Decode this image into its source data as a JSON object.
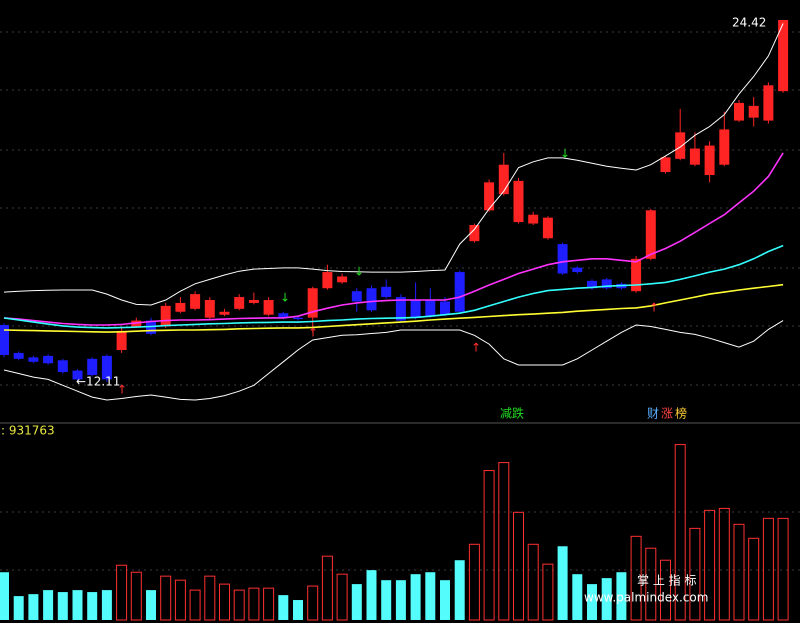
{
  "chart_data": {
    "type": "candlestick",
    "ylim": [
      10.82,
      25.1
    ],
    "up_color": "#ff2424",
    "down_color": "#1e1eff",
    "candles": {
      "open": [
        14.05,
        13.1,
        12.95,
        13.0,
        12.85,
        12.5,
        12.9,
        13.0,
        13.2,
        14.0,
        14.2,
        14.0,
        14.5,
        14.6,
        14.3,
        14.4,
        14.6,
        14.8,
        14.4,
        14.45,
        14.3,
        14.3,
        15.3,
        15.5,
        15.2,
        15.3,
        15.35,
        15.0,
        14.9,
        14.9,
        14.85,
        15.85,
        16.9,
        17.95,
        18.5,
        17.55,
        17.5,
        17.0,
        16.8,
        16.0,
        15.55,
        15.6,
        15.45,
        15.2,
        16.3,
        19.25,
        19.7,
        19.5,
        19.15,
        19.5,
        21.0,
        21.1,
        21.0,
        22.0
      ],
      "close": [
        13.03,
        12.9,
        12.8,
        12.75,
        12.45,
        12.2,
        12.35,
        12.2,
        13.85,
        14.2,
        13.75,
        14.7,
        14.8,
        15.1,
        14.9,
        14.5,
        15.0,
        14.9,
        14.9,
        14.3,
        14.25,
        15.3,
        15.85,
        15.7,
        14.85,
        14.55,
        15.0,
        14.2,
        14.3,
        14.35,
        14.4,
        14.5,
        17.45,
        18.9,
        19.5,
        18.95,
        17.8,
        17.7,
        15.8,
        15.85,
        15.3,
        15.3,
        15.3,
        16.3,
        17.95,
        19.75,
        20.6,
        20.05,
        20.15,
        20.7,
        21.6,
        21.5,
        22.2,
        24.42
      ],
      "high": [
        14.1,
        13.15,
        13.0,
        13.05,
        12.9,
        12.55,
        12.95,
        13.05,
        14.0,
        14.3,
        14.3,
        14.8,
        15.0,
        15.2,
        15.0,
        14.6,
        15.1,
        15.15,
        15.0,
        14.5,
        14.35,
        15.35,
        16.1,
        15.8,
        15.3,
        15.4,
        15.6,
        15.1,
        15.5,
        15.3,
        15.0,
        15.9,
        17.5,
        19.0,
        19.9,
        19.05,
        17.9,
        17.75,
        16.85,
        16.05,
        15.6,
        15.65,
        15.5,
        16.4,
        18.0,
        19.8,
        21.4,
        20.6,
        20.3,
        21.3,
        21.7,
        21.8,
        22.3,
        24.42
      ],
      "low": [
        12.95,
        12.85,
        12.75,
        12.7,
        12.4,
        12.11,
        12.3,
        12.11,
        13.1,
        13.95,
        13.7,
        13.95,
        14.45,
        14.55,
        14.25,
        14.35,
        14.55,
        14.75,
        14.35,
        14.25,
        14.2,
        13.8,
        15.25,
        15.45,
        14.5,
        14.5,
        14.95,
        14.15,
        14.25,
        14.3,
        14.35,
        14.45,
        16.85,
        17.9,
        18.45,
        17.5,
        17.45,
        16.95,
        15.75,
        15.8,
        15.25,
        15.25,
        15.25,
        15.15,
        16.25,
        19.2,
        19.65,
        19.45,
        18.9,
        19.45,
        20.95,
        20.8,
        20.9,
        21.95
      ]
    },
    "lines": [
      {
        "color": "#ffffff",
        "values": [
          15.17,
          15.2,
          15.22,
          15.23,
          15.24,
          15.24,
          15.24,
          15.1,
          14.9,
          14.75,
          14.73,
          14.9,
          15.2,
          15.45,
          15.6,
          15.75,
          15.88,
          15.95,
          15.97,
          15.99,
          15.99,
          15.95,
          15.9,
          15.87,
          15.86,
          15.85,
          15.85,
          15.85,
          15.87,
          15.9,
          15.92,
          16.8,
          17.3,
          18.0,
          18.6,
          19.4,
          19.6,
          19.73,
          19.73,
          19.65,
          19.55,
          19.45,
          19.38,
          19.32,
          19.5,
          19.8,
          20.1,
          20.5,
          20.8,
          21.2,
          21.9,
          22.5,
          23.2,
          24.3
        ]
      },
      {
        "color": "#ffffff",
        "values": [
          12.52,
          12.4,
          12.28,
          12.2,
          12.0,
          11.8,
          11.6,
          11.5,
          11.55,
          11.62,
          11.67,
          11.6,
          11.52,
          11.5,
          11.55,
          11.65,
          11.8,
          12.0,
          12.4,
          12.8,
          13.2,
          13.54,
          13.62,
          13.7,
          13.72,
          13.76,
          13.8,
          13.88,
          13.88,
          13.88,
          13.88,
          13.88,
          13.7,
          13.4,
          12.9,
          12.69,
          12.69,
          12.69,
          12.69,
          12.9,
          13.2,
          13.5,
          13.8,
          14.05,
          14.0,
          13.9,
          13.8,
          13.73,
          13.6,
          13.45,
          13.3,
          13.5,
          13.9,
          14.2
        ]
      },
      {
        "color": "#ffff33",
        "values": [
          13.88,
          13.87,
          13.86,
          13.85,
          13.84,
          13.83,
          13.82,
          13.81,
          13.82,
          13.84,
          13.86,
          13.87,
          13.88,
          13.88,
          13.89,
          13.9,
          13.92,
          13.93,
          13.94,
          13.95,
          13.95,
          13.97,
          14.0,
          14.03,
          14.06,
          14.09,
          14.12,
          14.15,
          14.18,
          14.22,
          14.25,
          14.28,
          14.31,
          14.34,
          14.37,
          14.4,
          14.42,
          14.45,
          14.48,
          14.52,
          14.55,
          14.58,
          14.61,
          14.63,
          14.7,
          14.8,
          14.9,
          15.0,
          15.1,
          15.17,
          15.24,
          15.3,
          15.36,
          15.42
        ]
      },
      {
        "color": "#ff33ff",
        "values": [
          14.29,
          14.25,
          14.2,
          14.15,
          14.1,
          14.07,
          14.05,
          14.05,
          14.07,
          14.12,
          14.17,
          14.2,
          14.22,
          14.22,
          14.23,
          14.25,
          14.27,
          14.28,
          14.29,
          14.29,
          14.35,
          14.5,
          14.62,
          14.73,
          14.8,
          14.85,
          14.88,
          14.9,
          14.9,
          14.9,
          14.9,
          15.0,
          15.2,
          15.41,
          15.6,
          15.8,
          15.95,
          16.1,
          16.2,
          16.25,
          16.3,
          16.3,
          16.25,
          16.2,
          16.45,
          16.65,
          16.9,
          17.2,
          17.5,
          17.8,
          18.2,
          18.6,
          19.1,
          19.9
        ]
      },
      {
        "color": "#33ffff",
        "values": [
          14.29,
          14.22,
          14.15,
          14.08,
          14.02,
          13.98,
          13.96,
          13.95,
          13.96,
          13.98,
          14.0,
          14.03,
          14.05,
          14.07,
          14.09,
          14.1,
          14.12,
          14.13,
          14.14,
          14.15,
          14.15,
          14.17,
          14.2,
          14.22,
          14.25,
          14.27,
          14.28,
          14.29,
          14.31,
          14.35,
          14.4,
          14.45,
          14.55,
          14.7,
          14.85,
          15.0,
          15.12,
          15.22,
          15.26,
          15.3,
          15.33,
          15.37,
          15.39,
          15.41,
          15.45,
          15.5,
          15.6,
          15.72,
          15.85,
          15.95,
          16.1,
          16.3,
          16.55,
          16.75
        ]
      }
    ],
    "volume": {
      "ylim": [
        0,
        1650000
      ],
      "up_color": "#ff3030",
      "down_color": "#54fcfc",
      "values": [
        438000,
        219000,
        237000,
        274000,
        256000,
        274000,
        256000,
        274000,
        502000,
        438000,
        274000,
        402000,
        365000,
        274000,
        402000,
        329000,
        274000,
        292000,
        292000,
        228000,
        183000,
        311000,
        585000,
        420000,
        329000,
        457000,
        365000,
        365000,
        420000,
        438000,
        365000,
        548000,
        694000,
        1370000,
        1443000,
        987000,
        694000,
        512000,
        676000,
        420000,
        329000,
        384000,
        438000,
        767000,
        658000,
        548000,
        1608000,
        840000,
        1005000,
        1023000,
        877000,
        749000,
        932000,
        931763
      ]
    },
    "high_label": "24.42",
    "low_label": "←12.11",
    "volume_label": ": 931763",
    "tags": [
      "减跌",
      "财",
      "涨",
      "榜"
    ],
    "watermark": [
      "掌 上 指 标",
      "www.palmindex.com"
    ]
  }
}
